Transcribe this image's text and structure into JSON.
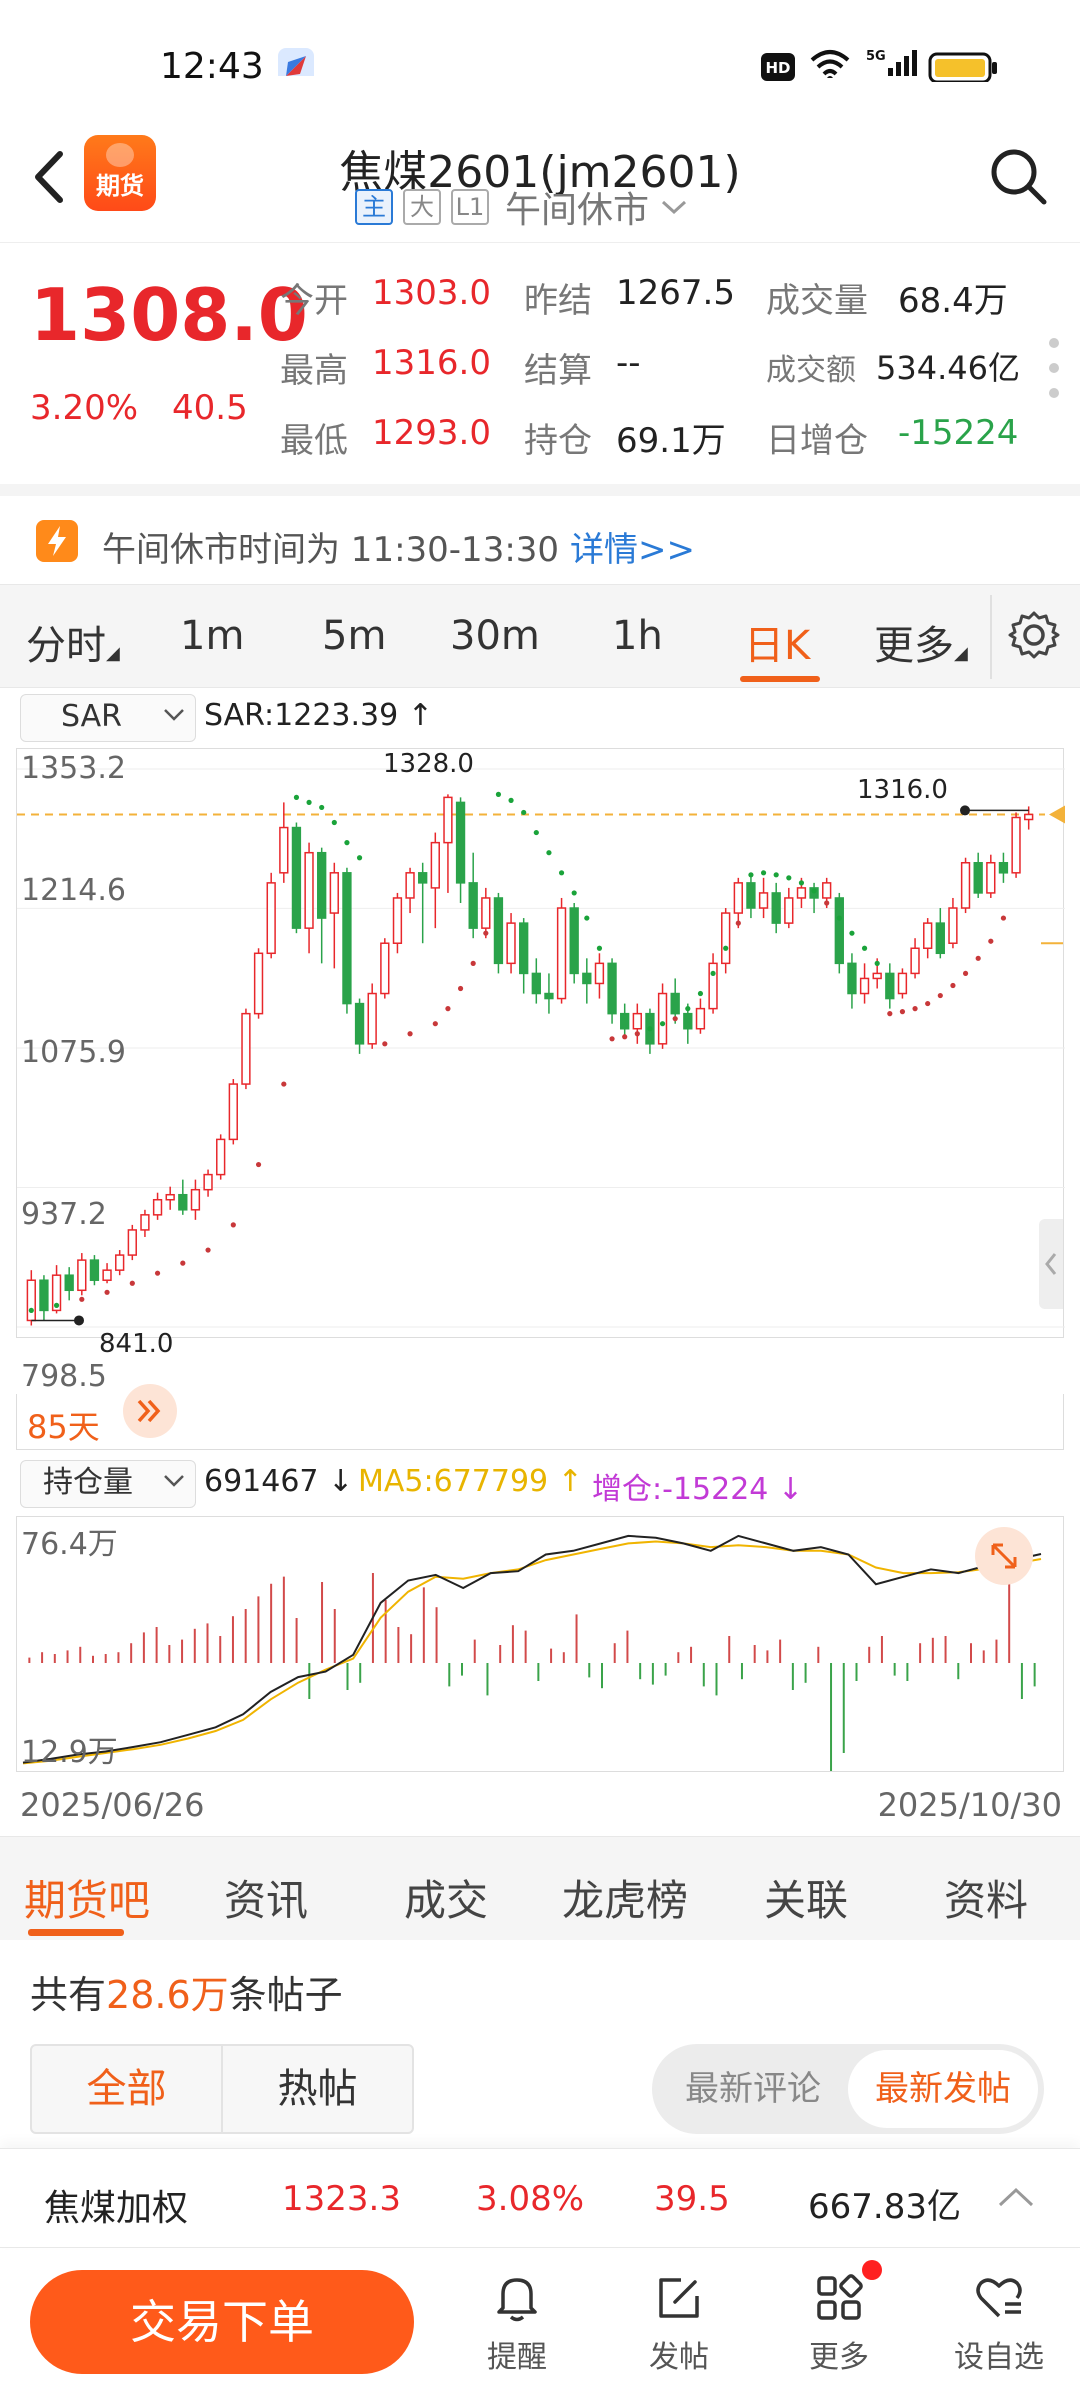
{
  "status_bar": {
    "time": "12:43",
    "icons": [
      "navigation-app-icon",
      "hd-icon",
      "wifi-icon",
      "5g-signal-icon",
      "battery-icon"
    ]
  },
  "header": {
    "title": "焦煤2601(jm2601)",
    "logo_text": "期货",
    "tags": [
      "主",
      "大",
      "L1"
    ],
    "session_status": "午间休市"
  },
  "quote": {
    "last_price": "1308.0",
    "change_pct": "3.20%",
    "change_abs": "40.5",
    "fields": [
      {
        "label": "今开",
        "value": "1303.0",
        "color": "red"
      },
      {
        "label": "最高",
        "value": "1316.0",
        "color": "red"
      },
      {
        "label": "最低",
        "value": "1293.0",
        "color": "red"
      },
      {
        "label": "昨结",
        "value": "1267.5",
        "color": "dark"
      },
      {
        "label": "结算",
        "value": "--",
        "color": "dark"
      },
      {
        "label": "持仓",
        "value": "69.1万",
        "color": "dark"
      },
      {
        "label": "成交量",
        "value": "68.4万",
        "color": "dark"
      },
      {
        "label": "成交额",
        "value": "534.46亿",
        "color": "dark"
      },
      {
        "label": "日增仓",
        "value": "-15224",
        "color": "green"
      }
    ]
  },
  "notice": {
    "text": "午间休市时间为 11:30-13:30",
    "link": "详情>>"
  },
  "period_tabs": [
    "分时",
    "1m",
    "5m",
    "30m",
    "1h",
    "日K",
    "更多"
  ],
  "active_period": "日K",
  "kline": {
    "indicator": "SAR",
    "indicator_value": "SAR:1223.39 ↑",
    "y_labels": [
      "1353.2",
      "1214.6",
      "1075.9",
      "937.2",
      "798.5"
    ],
    "high_label": "1328.0",
    "low_label": "841.0",
    "last_high_label": "1316.0",
    "range_label": "85天"
  },
  "oi": {
    "indicator": "持仓量",
    "value": "691467 ↓",
    "ma5": "MA5:677799 ↑",
    "change": "增仓:-15224 ↓",
    "y_top": "76.4万",
    "y_bottom": "12.9万"
  },
  "dates": {
    "start": "2025/06/26",
    "end": "2025/10/30"
  },
  "section_tabs": [
    "期货吧",
    "资讯",
    "成交",
    "龙虎榜",
    "关联",
    "资料"
  ],
  "forum": {
    "count_prefix": "共有",
    "count": "28.6万",
    "count_suffix": "条帖子",
    "filters": [
      "全部",
      "热帖"
    ],
    "sorts": [
      "最新评论",
      "最新发帖"
    ]
  },
  "weighted": {
    "name": "焦煤加权",
    "price": "1323.3",
    "pct": "3.08%",
    "change": "39.5",
    "turnover": "667.83亿"
  },
  "bottom_bar": {
    "trade_label": "交易下单",
    "items": [
      "提醒",
      "发帖",
      "更多",
      "设自选"
    ]
  },
  "colors": {
    "up": "#e8272b",
    "down": "#2aa34a",
    "accent": "#f0601a",
    "link": "#2a7ad6"
  },
  "chart_data": {
    "type": "candlestick",
    "title": "",
    "x_range": [
      "2025/06/26",
      "2025/10/30"
    ],
    "ylim": [
      798.5,
      1353.2
    ],
    "y_ticks": [
      798.5,
      937.2,
      1075.9,
      1214.6,
      1353.2
    ],
    "candles": [
      [
        805,
        845,
        800,
        855
      ],
      [
        845,
        815,
        805,
        850
      ],
      [
        815,
        850,
        812,
        860
      ],
      [
        850,
        835,
        825,
        858
      ],
      [
        835,
        865,
        830,
        872
      ],
      [
        865,
        845,
        840,
        870
      ],
      [
        845,
        855,
        842,
        862
      ],
      [
        855,
        870,
        850,
        875
      ],
      [
        870,
        895,
        865,
        900
      ],
      [
        895,
        910,
        888,
        915
      ],
      [
        910,
        925,
        905,
        932
      ],
      [
        925,
        930,
        915,
        938
      ],
      [
        930,
        915,
        910,
        945
      ],
      [
        915,
        935,
        905,
        945
      ],
      [
        935,
        950,
        928,
        955
      ],
      [
        950,
        985,
        945,
        990
      ],
      [
        985,
        1040,
        980,
        1045
      ],
      [
        1040,
        1110,
        1035,
        1115
      ],
      [
        1110,
        1170,
        1105,
        1175
      ],
      [
        1170,
        1240,
        1165,
        1250
      ],
      [
        1250,
        1295,
        1240,
        1320
      ],
      [
        1295,
        1195,
        1190,
        1300
      ],
      [
        1195,
        1270,
        1170,
        1280
      ],
      [
        1270,
        1205,
        1160,
        1275
      ],
      [
        1210,
        1250,
        1155,
        1260
      ],
      [
        1250,
        1120,
        1110,
        1255
      ],
      [
        1120,
        1080,
        1070,
        1125
      ],
      [
        1080,
        1130,
        1075,
        1140
      ],
      [
        1130,
        1180,
        1125,
        1185
      ],
      [
        1180,
        1225,
        1170,
        1230
      ],
      [
        1225,
        1250,
        1210,
        1255
      ],
      [
        1250,
        1240,
        1180,
        1260
      ],
      [
        1235,
        1280,
        1195,
        1290
      ],
      [
        1280,
        1325,
        1230,
        1328
      ],
      [
        1320,
        1240,
        1220,
        1325
      ],
      [
        1240,
        1195,
        1185,
        1270
      ],
      [
        1195,
        1225,
        1185,
        1235
      ],
      [
        1225,
        1160,
        1150,
        1230
      ],
      [
        1160,
        1200,
        1150,
        1210
      ],
      [
        1200,
        1150,
        1130,
        1205
      ],
      [
        1150,
        1130,
        1120,
        1165
      ],
      [
        1130,
        1125,
        1110,
        1150
      ],
      [
        1125,
        1215,
        1120,
        1225
      ],
      [
        1215,
        1150,
        1140,
        1220
      ],
      [
        1150,
        1140,
        1120,
        1165
      ],
      [
        1140,
        1160,
        1125,
        1170
      ],
      [
        1160,
        1110,
        1100,
        1165
      ],
      [
        1110,
        1095,
        1085,
        1120
      ],
      [
        1095,
        1110,
        1080,
        1120
      ],
      [
        1110,
        1080,
        1070,
        1115
      ],
      [
        1080,
        1130,
        1075,
        1140
      ],
      [
        1130,
        1110,
        1100,
        1145
      ],
      [
        1110,
        1095,
        1080,
        1120
      ],
      [
        1095,
        1115,
        1090,
        1125
      ],
      [
        1115,
        1160,
        1110,
        1170
      ],
      [
        1160,
        1210,
        1150,
        1215
      ],
      [
        1210,
        1240,
        1195,
        1245
      ],
      [
        1240,
        1215,
        1205,
        1250
      ],
      [
        1215,
        1230,
        1205,
        1245
      ],
      [
        1230,
        1200,
        1190,
        1240
      ],
      [
        1200,
        1225,
        1195,
        1235
      ],
      [
        1225,
        1235,
        1215,
        1245
      ],
      [
        1235,
        1225,
        1210,
        1240
      ],
      [
        1225,
        1240,
        1215,
        1245
      ],
      [
        1225,
        1160,
        1150,
        1230
      ],
      [
        1160,
        1130,
        1115,
        1170
      ],
      [
        1130,
        1145,
        1120,
        1160
      ],
      [
        1145,
        1150,
        1135,
        1165
      ],
      [
        1150,
        1125,
        1115,
        1160
      ],
      [
        1130,
        1150,
        1125,
        1155
      ],
      [
        1150,
        1175,
        1145,
        1185
      ],
      [
        1175,
        1200,
        1165,
        1205
      ],
      [
        1200,
        1170,
        1165,
        1215
      ],
      [
        1180,
        1215,
        1175,
        1225
      ],
      [
        1215,
        1260,
        1210,
        1265
      ],
      [
        1260,
        1230,
        1225,
        1270
      ],
      [
        1230,
        1260,
        1225,
        1268
      ],
      [
        1260,
        1250,
        1240,
        1270
      ],
      [
        1250,
        1305,
        1245,
        1310
      ],
      [
        1303,
        1308,
        1293,
        1316
      ]
    ],
    "sar_points": [
      [
        0,
        815
      ],
      [
        2,
        820
      ],
      [
        4,
        826
      ],
      [
        6,
        833
      ],
      [
        8,
        842
      ],
      [
        10,
        852
      ],
      [
        12,
        862
      ],
      [
        14,
        875
      ],
      [
        16,
        900
      ],
      [
        18,
        960
      ],
      [
        20,
        1040
      ],
      [
        21,
        1325
      ],
      [
        22,
        1320
      ],
      [
        23,
        1315
      ],
      [
        24,
        1300
      ],
      [
        25,
        1280
      ],
      [
        26,
        1265
      ],
      [
        28,
        1080
      ],
      [
        30,
        1090
      ],
      [
        32,
        1100
      ],
      [
        33,
        1115
      ],
      [
        34,
        1135
      ],
      [
        35,
        1160
      ],
      [
        36,
        1190
      ],
      [
        37,
        1328
      ],
      [
        38,
        1322
      ],
      [
        39,
        1310
      ],
      [
        40,
        1290
      ],
      [
        41,
        1270
      ],
      [
        42,
        1250
      ],
      [
        43,
        1230
      ],
      [
        44,
        1205
      ],
      [
        45,
        1175
      ],
      [
        46,
        1085
      ],
      [
        47,
        1087
      ],
      [
        48,
        1090
      ],
      [
        49,
        1095
      ],
      [
        50,
        1100
      ],
      [
        51,
        1105
      ],
      [
        52,
        1115
      ],
      [
        53,
        1130
      ],
      [
        54,
        1150
      ],
      [
        55,
        1175
      ],
      [
        56,
        1200
      ],
      [
        57,
        1248
      ],
      [
        58,
        1250
      ],
      [
        59,
        1248
      ],
      [
        60,
        1245
      ],
      [
        61,
        1240
      ],
      [
        62,
        1232
      ],
      [
        63,
        1220
      ],
      [
        64,
        1205
      ],
      [
        65,
        1190
      ],
      [
        66,
        1175
      ],
      [
        67,
        1160
      ],
      [
        68,
        1110
      ],
      [
        69,
        1112
      ],
      [
        70,
        1115
      ],
      [
        71,
        1120
      ],
      [
        72,
        1128
      ],
      [
        73,
        1138
      ],
      [
        74,
        1150
      ],
      [
        75,
        1165
      ],
      [
        76,
        1182
      ],
      [
        77,
        1205
      ]
    ],
    "oi_series": {
      "name": "持仓量",
      "ylim": [
        129000,
        764000
      ],
      "values": [
        130000,
        140000,
        152000,
        160000,
        172000,
        185000,
        205000,
        225000,
        260000,
        320000,
        360000,
        375000,
        420000,
        560000,
        620000,
        635000,
        600000,
        640000,
        645000,
        690000,
        700000,
        720000,
        740000,
        735000,
        720000,
        700000,
        740000,
        720000,
        700000,
        710000,
        690000,
        610000,
        630000,
        650000,
        640000,
        660000,
        675000,
        691467
      ]
    },
    "oi_ma5": {
      "name": "MA5",
      "values": [
        128000,
        135000,
        146000,
        156000,
        166000,
        178000,
        195000,
        215000,
        245000,
        300000,
        345000,
        380000,
        410000,
        520000,
        590000,
        630000,
        625000,
        640000,
        650000,
        675000,
        690000,
        705000,
        720000,
        725000,
        720000,
        710000,
        715000,
        710000,
        700000,
        700000,
        690000,
        655000,
        640000,
        640000,
        642000,
        652000,
        665000,
        677799
      ]
    },
    "oi_change_bars": [
      6,
      12,
      10,
      14,
      18,
      8,
      10,
      12,
      22,
      34,
      40,
      20,
      26,
      38,
      44,
      30,
      52,
      60,
      74,
      88,
      96,
      50,
      -40,
      90,
      60,
      -30,
      -22,
      100,
      70,
      40,
      32,
      84,
      62,
      -26,
      -14,
      26,
      -36,
      20,
      42,
      36,
      -20,
      16,
      12,
      54,
      -16,
      -28,
      22,
      36,
      -18,
      -24,
      -14,
      12,
      18,
      -26,
      -36,
      30,
      -18,
      20,
      14,
      26,
      -30,
      -22,
      18,
      -120,
      -100,
      -20,
      18,
      30,
      -14,
      -20,
      22,
      28,
      30,
      -18,
      22,
      14,
      26,
      94,
      -40,
      -26
    ]
  }
}
